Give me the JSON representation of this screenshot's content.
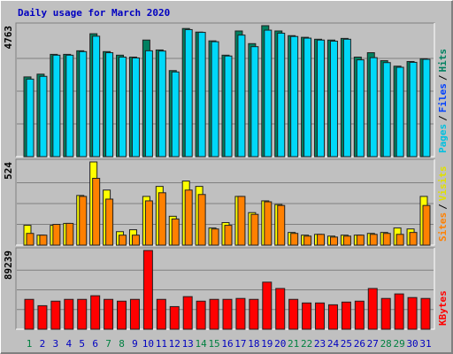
{
  "chart_data": {
    "type": "bar",
    "title": "Daily usage for March 2020",
    "categories": [
      "1",
      "2",
      "3",
      "4",
      "5",
      "6",
      "7",
      "8",
      "9",
      "10",
      "11",
      "12",
      "13",
      "14",
      "15",
      "16",
      "17",
      "18",
      "19",
      "20",
      "21",
      "22",
      "23",
      "24",
      "25",
      "26",
      "27",
      "28",
      "29",
      "30",
      "31"
    ],
    "weekend": [
      0,
      6,
      7,
      13,
      14,
      20,
      21,
      27,
      28
    ],
    "weekday_color": "#0000c0",
    "weekend_color": "#008040",
    "separator": "/",
    "panels": [
      {
        "ylim": [
          0,
          4763
        ],
        "yticks": [
          4763
        ],
        "legend": [
          {
            "label": "Pages",
            "color": "#00c0e0"
          },
          {
            "label": "Files",
            "color": "#0040ff"
          },
          {
            "label": "Hits",
            "color": "#008060"
          }
        ],
        "series": [
          {
            "color": "#008060",
            "values": [
              2900,
              3000,
              3720,
              3720,
              3850,
              4470,
              3820,
              3690,
              3620,
              4240,
              3880,
              3130,
              4660,
              4530,
              4210,
              3690,
              4570,
              4110,
              4763,
              4570,
              4400,
              4340,
              4270,
              4240,
              4300,
              3620,
              3780,
              3490,
              3290,
              3460,
              3560
            ]
          },
          {
            "color": "#00d8f8",
            "values": [
              2820,
              2920,
              3690,
              3690,
              3820,
              4380,
              3780,
              3620,
              3590,
              3850,
              3840,
              3080,
              4620,
              4520,
              4180,
              3660,
              4420,
              4000,
              4600,
              4490,
              4370,
              4310,
              4240,
              4200,
              4270,
              3520,
              3600,
              3420,
              3250,
              3430,
              3540
            ]
          }
        ]
      },
      {
        "ylim": [
          0,
          524
        ],
        "yticks": [
          524
        ],
        "legend": [
          {
            "label": "Sites",
            "color": "#ff8000"
          },
          {
            "label": "Visits",
            "color": "#e0e000"
          }
        ],
        "series": [
          {
            "color": "#ffff00",
            "values": [
              125,
              63,
              125,
              137,
              313,
              524,
              347,
              85,
              97,
              307,
              370,
              182,
              404,
              370,
              108,
              142,
              307,
              205,
              279,
              256,
              80,
              63,
              68,
              57,
              63,
              63,
              74,
              80,
              108,
              102,
              307
            ]
          },
          {
            "color": "#ff8000",
            "values": [
              74,
              63,
              131,
              137,
              307,
              421,
              290,
              63,
              63,
              279,
              330,
              165,
              347,
              319,
              102,
              125,
              307,
              194,
              273,
              250,
              74,
              57,
              68,
              51,
              57,
              63,
              68,
              74,
              68,
              80,
              250
            ]
          }
        ]
      },
      {
        "ylim": [
          0,
          89239
        ],
        "yticks": [
          89239
        ],
        "legend": [
          {
            "label": "KBytes",
            "color": "#ff0000"
          }
        ],
        "series": [
          {
            "color": "#ff0000",
            "values": [
              33850,
              26670,
              31800,
              33850,
              33850,
              37950,
              33850,
              31800,
              33850,
              89239,
              33850,
              25640,
              36930,
              31800,
              33850,
              33850,
              34880,
              33850,
              53340,
              46160,
              33850,
              29750,
              29750,
              27700,
              30770,
              31800,
              46160,
              34880,
              40000,
              35900,
              34880
            ]
          }
        ]
      }
    ]
  }
}
